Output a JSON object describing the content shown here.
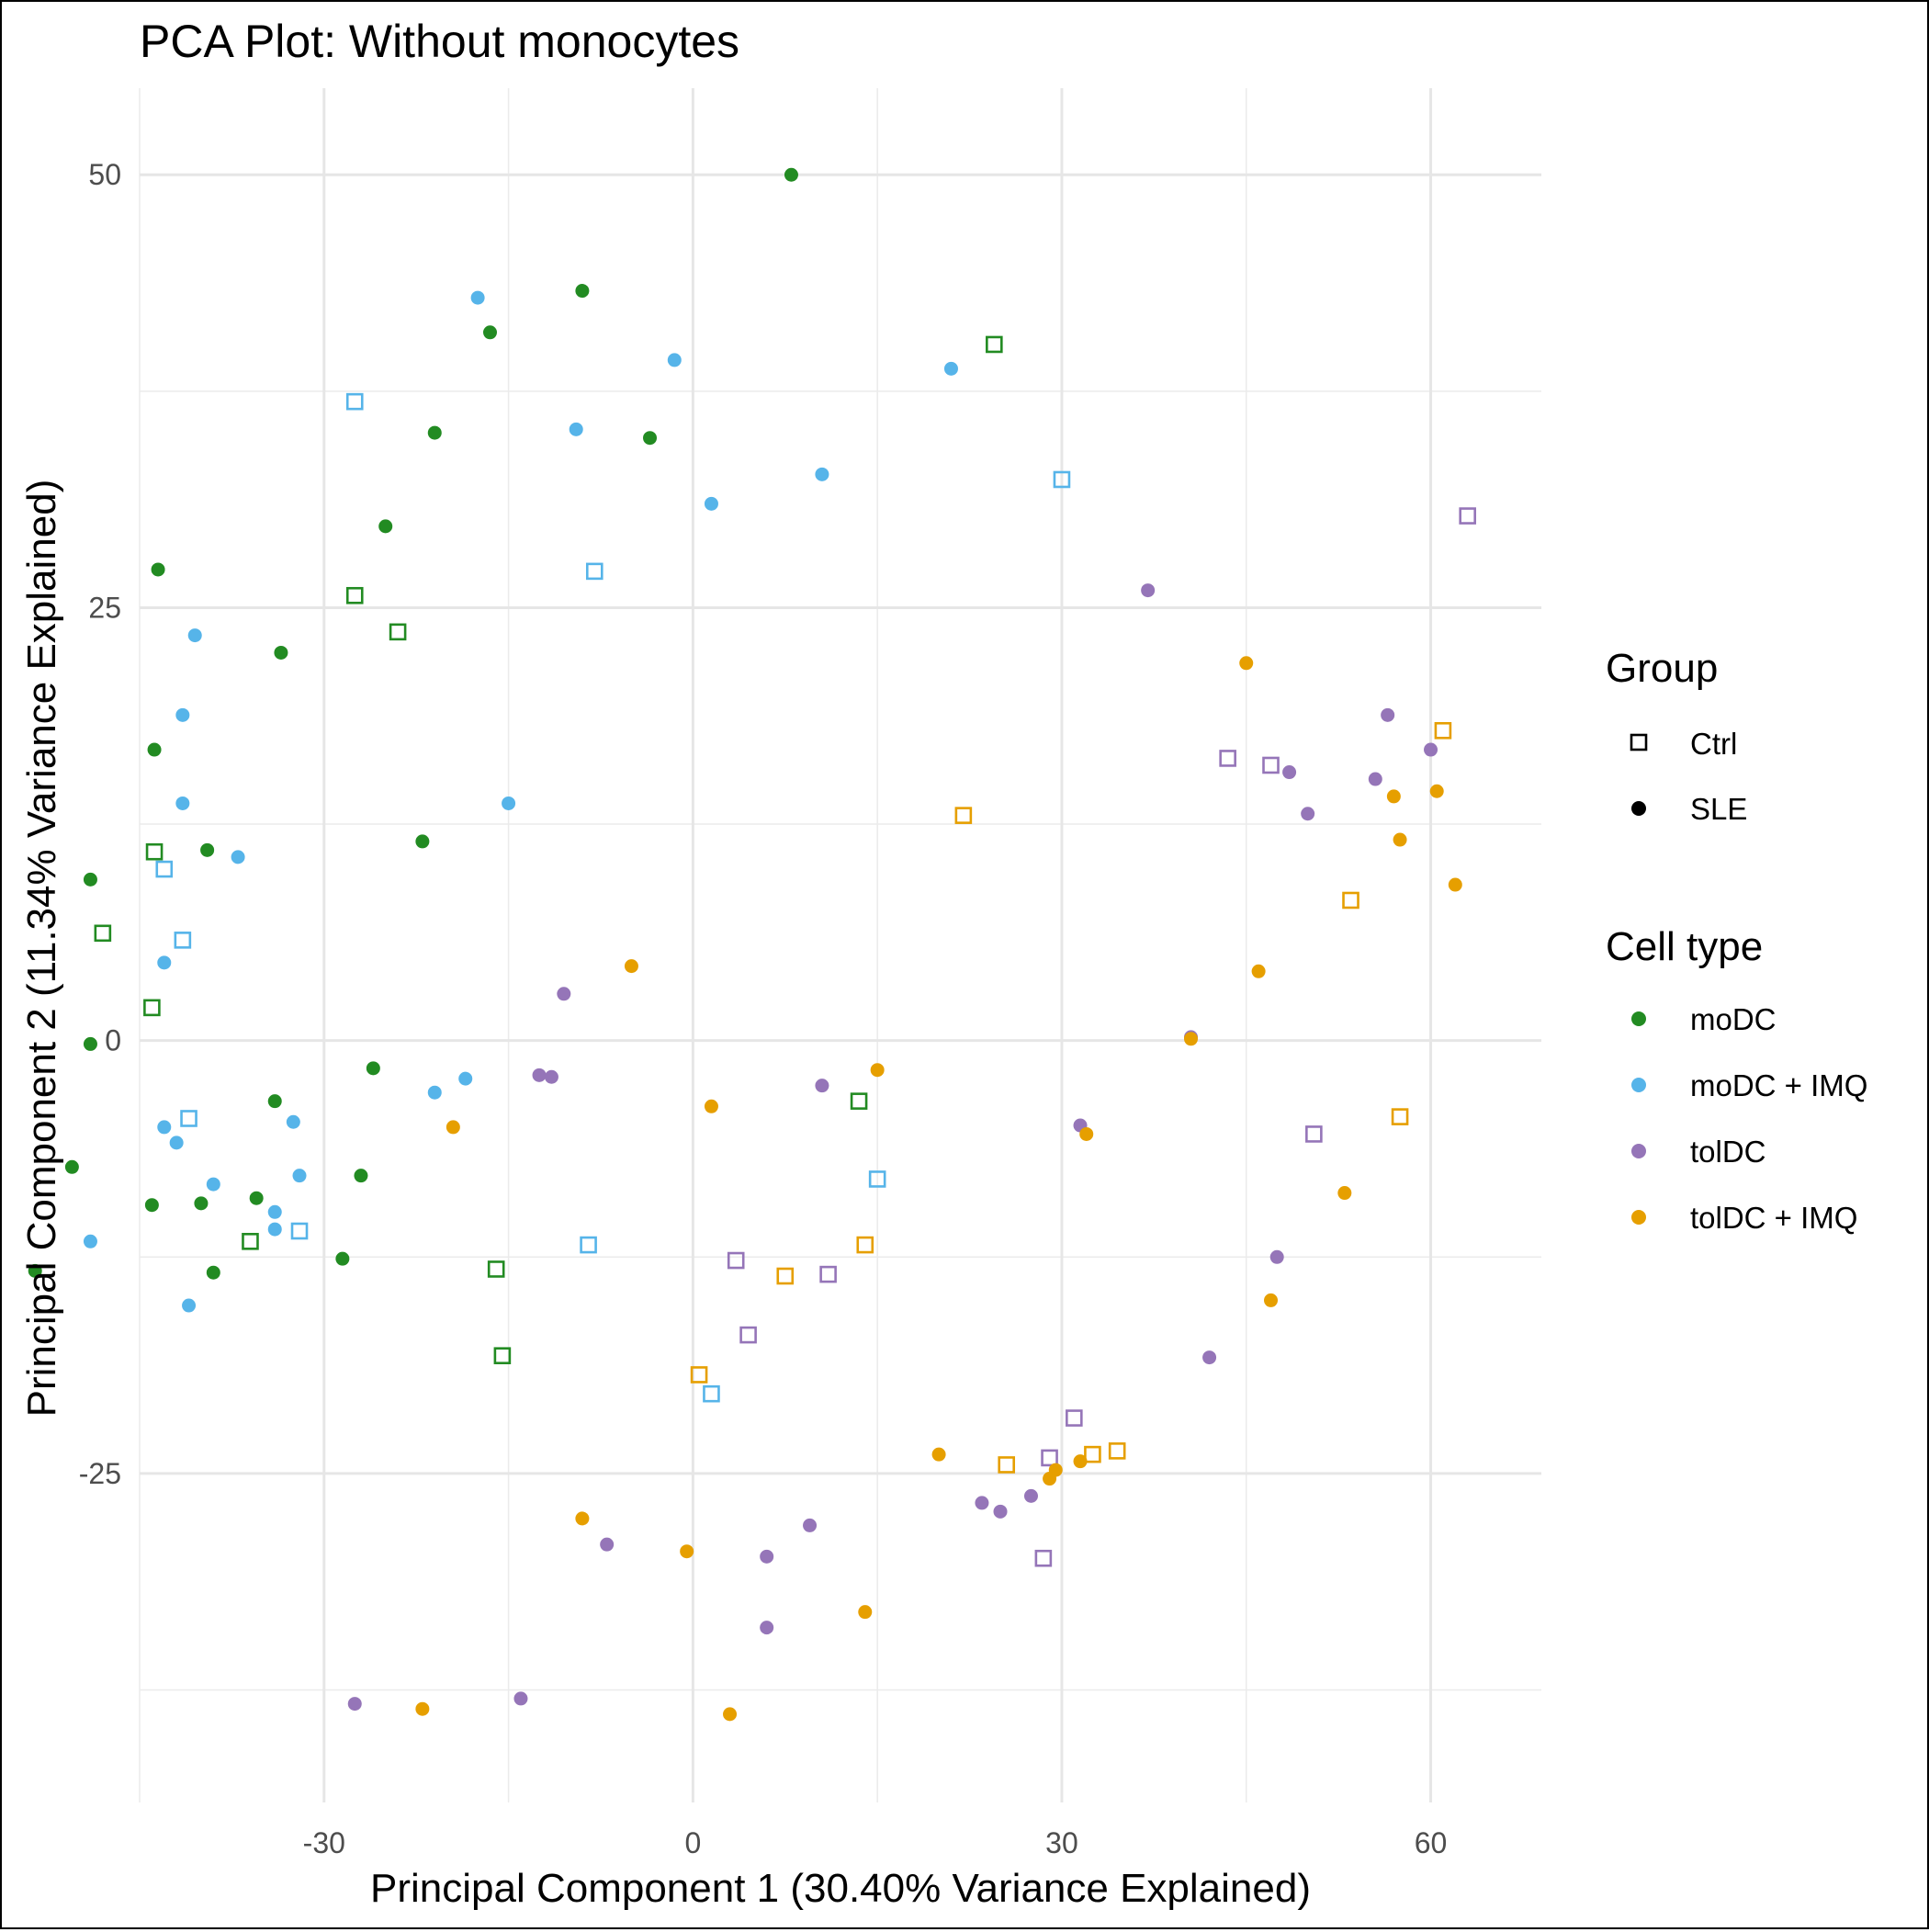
{
  "chart_data": {
    "type": "scatter",
    "title": "PCA Plot: Without monocytes",
    "xlabel": "Principal Component 1 (30.40% Variance Explained)",
    "ylabel": "Principal Component 2 (11.34% Variance Explained)",
    "xlim": [
      -45,
      69
    ],
    "ylim": [
      -44,
      55
    ],
    "x_ticks": [
      -30,
      0,
      30,
      60
    ],
    "y_ticks": [
      -25,
      0,
      25,
      50
    ],
    "x_tick_labels": [
      "-30",
      "0",
      "30",
      "60"
    ],
    "y_tick_labels": [
      "-25",
      "0",
      "25",
      "50"
    ],
    "grid": true,
    "legend_position": "right",
    "legend": {
      "group_title": "Group",
      "group_items": [
        {
          "name": "Ctrl",
          "shape": "open-square"
        },
        {
          "name": "SLE",
          "shape": "filled-circle"
        }
      ],
      "cell_type_title": "Cell type",
      "cell_type_items": [
        {
          "name": "moDC",
          "color": "#228B22"
        },
        {
          "name": "moDC + IMQ",
          "color": "#56B4E9"
        },
        {
          "name": "tolDC",
          "color": "#9575B8"
        },
        {
          "name": "tolDC + IMQ",
          "color": "#E69F00"
        }
      ]
    },
    "series": [
      {
        "name": "moDC",
        "color": "#228B22",
        "ctrl": [
          [
            24.5,
            40.2
          ],
          [
            -27.5,
            25.7
          ],
          [
            -24,
            23.6
          ],
          [
            -43.8,
            10.9
          ],
          [
            -48,
            6.2
          ],
          [
            -44,
            1.9
          ],
          [
            13.5,
            -3.5
          ],
          [
            -36,
            -11.6
          ],
          [
            -16,
            -13.2
          ],
          [
            -15.5,
            -18.2
          ]
        ],
        "sle": [
          [
            8,
            50
          ],
          [
            -9,
            43.3
          ],
          [
            -16.5,
            40.9
          ],
          [
            -21,
            35.1
          ],
          [
            -3.5,
            34.8
          ],
          [
            -25,
            29.7
          ],
          [
            -43.5,
            27.2
          ],
          [
            -33.5,
            22.4
          ],
          [
            -43.8,
            16.8
          ],
          [
            -39.5,
            11.0
          ],
          [
            -22,
            11.5
          ],
          [
            -49,
            9.3
          ],
          [
            -49,
            -0.2
          ],
          [
            -26,
            -1.6
          ],
          [
            -34,
            -3.5
          ],
          [
            -50.5,
            -7.3
          ],
          [
            -27,
            -7.8
          ],
          [
            -35.5,
            -9.1
          ],
          [
            -44,
            -9.5
          ],
          [
            -40,
            -9.4
          ],
          [
            -53.5,
            -13.3
          ],
          [
            -39,
            -13.4
          ],
          [
            -28.5,
            -12.6
          ]
        ]
      },
      {
        "name": "moDC + IMQ",
        "color": "#56B4E9",
        "ctrl": [
          [
            -27.5,
            36.9
          ],
          [
            -8,
            27.1
          ],
          [
            30,
            32.4
          ],
          [
            -43,
            9.9
          ],
          [
            -41.5,
            5.8
          ],
          [
            -41,
            -4.5
          ],
          [
            -32,
            -11.0
          ],
          [
            -8.5,
            -11.8
          ],
          [
            15,
            -8.0
          ],
          [
            1.5,
            -20.4
          ]
        ],
        "sle": [
          [
            -17.5,
            42.9
          ],
          [
            -1.5,
            39.3
          ],
          [
            21,
            38.8
          ],
          [
            -9.5,
            35.3
          ],
          [
            10.5,
            32.7
          ],
          [
            1.5,
            31.0
          ],
          [
            -40.5,
            23.4
          ],
          [
            -41.5,
            18.8
          ],
          [
            -41.5,
            13.7
          ],
          [
            -15,
            13.7
          ],
          [
            -37,
            10.6
          ],
          [
            -43,
            4.5
          ],
          [
            -21,
            -3.0
          ],
          [
            -18.5,
            -2.2
          ],
          [
            -43,
            -5.0
          ],
          [
            -42,
            -5.9
          ],
          [
            -32.5,
            -4.7
          ],
          [
            -32,
            -7.8
          ],
          [
            -39,
            -8.3
          ],
          [
            -34,
            -9.9
          ],
          [
            -34,
            -10.9
          ],
          [
            -49,
            -11.6
          ],
          [
            -41,
            -15.3
          ]
        ]
      },
      {
        "name": "tolDC",
        "color": "#9575B8",
        "ctrl": [
          [
            63,
            30.3
          ],
          [
            43.5,
            16.3
          ],
          [
            47,
            15.9
          ],
          [
            50.5,
            -5.4
          ],
          [
            3.5,
            -12.7
          ],
          [
            11,
            -13.5
          ],
          [
            4.5,
            -17.0
          ],
          [
            31,
            -21.8
          ],
          [
            29,
            -24.1
          ],
          [
            28.5,
            -29.9
          ]
        ],
        "sle": [
          [
            37,
            26.0
          ],
          [
            56.5,
            18.8
          ],
          [
            60,
            16.8
          ],
          [
            48.5,
            15.5
          ],
          [
            55.5,
            15.1
          ],
          [
            50,
            13.1
          ],
          [
            -10.5,
            2.7
          ],
          [
            40.5,
            0.2
          ],
          [
            -12.5,
            -2.0
          ],
          [
            -11.5,
            -2.1
          ],
          [
            10.5,
            -2.6
          ],
          [
            31.5,
            -4.9
          ],
          [
            47.5,
            -12.5
          ],
          [
            42,
            -18.3
          ],
          [
            9.5,
            -28.0
          ],
          [
            -7,
            -29.1
          ],
          [
            6,
            -29.8
          ],
          [
            23.5,
            -26.7
          ],
          [
            25,
            -27.2
          ],
          [
            27.5,
            -26.3
          ],
          [
            6,
            -33.9
          ],
          [
            -27.5,
            -38.3
          ],
          [
            -14,
            -38.0
          ]
        ]
      },
      {
        "name": "tolDC + IMQ",
        "color": "#E69F00",
        "ctrl": [
          [
            22,
            13.0
          ],
          [
            53.5,
            8.1
          ],
          [
            57.5,
            -4.4
          ],
          [
            61,
            17.9
          ],
          [
            0.5,
            -19.3
          ],
          [
            7.5,
            -13.6
          ],
          [
            14,
            -11.8
          ],
          [
            25.5,
            -24.5
          ],
          [
            32.5,
            -23.9
          ],
          [
            34.5,
            -23.7
          ]
        ],
        "sle": [
          [
            45,
            21.8
          ],
          [
            57,
            14.1
          ],
          [
            60.5,
            14.4
          ],
          [
            57.5,
            11.6
          ],
          [
            62,
            9.0
          ],
          [
            46,
            4.0
          ],
          [
            40.5,
            0.1
          ],
          [
            -5,
            4.3
          ],
          [
            15,
            -1.7
          ],
          [
            1.5,
            -3.8
          ],
          [
            -19.5,
            -5.0
          ],
          [
            32,
            -5.4
          ],
          [
            53,
            -8.8
          ],
          [
            47,
            -15.0
          ],
          [
            20,
            -23.9
          ],
          [
            29.5,
            -24.8
          ],
          [
            29,
            -25.3
          ],
          [
            31.5,
            -24.3
          ],
          [
            -9,
            -27.6
          ],
          [
            -0.5,
            -29.5
          ],
          [
            14,
            -33.0
          ],
          [
            -22,
            -38.6
          ],
          [
            3,
            -38.9
          ]
        ]
      }
    ]
  }
}
